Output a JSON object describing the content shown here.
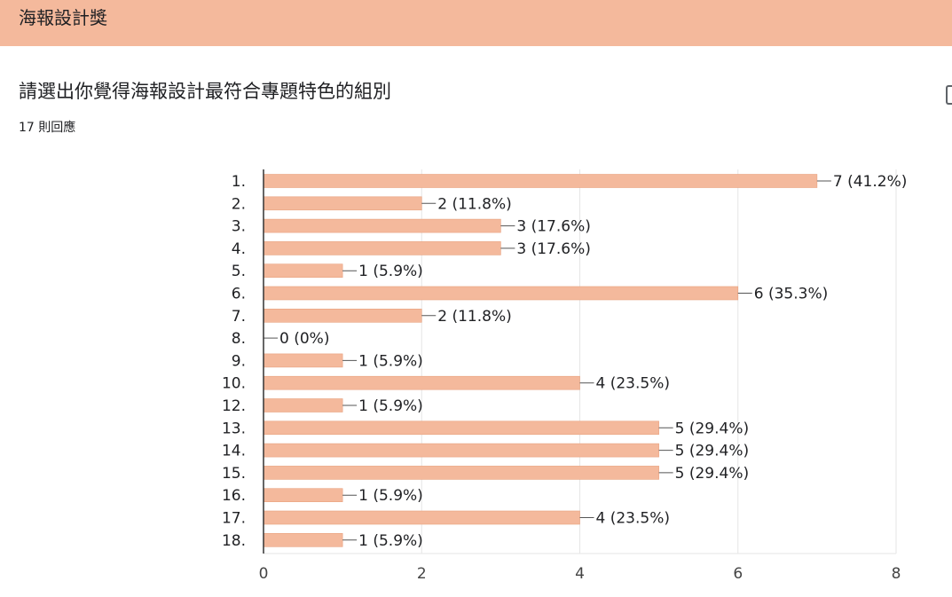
{
  "section": {
    "title": "海報設計獎"
  },
  "question": {
    "title": "請選出你覺得海報設計最符合專題特色的組別",
    "response_count": "17 則回應"
  },
  "colors": {
    "bar": "#f4b99c",
    "header": "#f4b99c",
    "grid": "#e6e6e6",
    "axis": "#333333",
    "text": "#202124"
  },
  "icons": {
    "edge": "panel-edge-icon"
  },
  "chart_data": {
    "type": "bar",
    "orientation": "horizontal",
    "categories": [
      "1.",
      "2.",
      "3.",
      "4.",
      "5.",
      "6.",
      "7.",
      "8.",
      "9.",
      "10.",
      "12.",
      "13.",
      "14.",
      "15.",
      "16.",
      "17.",
      "18."
    ],
    "values": [
      7,
      2,
      3,
      3,
      1,
      6,
      2,
      0,
      1,
      4,
      1,
      5,
      5,
      5,
      1,
      4,
      1
    ],
    "labels": [
      "7 (41.2%)",
      "2 (11.8%)",
      "3 (17.6%)",
      "3 (17.6%)",
      "1 (5.9%)",
      "6 (35.3%)",
      "2 (11.8%)",
      "0 (0%)",
      "1 (5.9%)",
      "4 (23.5%)",
      "1 (5.9%)",
      "5 (29.4%)",
      "5 (29.4%)",
      "5 (29.4%)",
      "1 (5.9%)",
      "4 (23.5%)",
      "1 (5.9%)"
    ],
    "xlim": [
      0,
      8
    ],
    "xticks": [
      "0",
      "2",
      "4",
      "6",
      "8"
    ],
    "grid": true
  }
}
